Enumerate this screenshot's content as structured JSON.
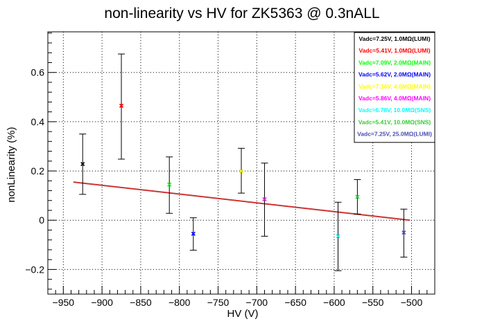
{
  "chart_data": {
    "type": "scatter",
    "title": "non-linearity vs HV for ZK5363 @ 0.3nALL",
    "xlabel": "HV (V)",
    "ylabel": "nonLinearity (%)",
    "xlim": [
      -970,
      -470
    ],
    "ylim": [
      -0.3,
      0.765
    ],
    "x_ticks": [
      -950,
      -900,
      -850,
      -800,
      -750,
      -700,
      -650,
      -600,
      -550,
      -500
    ],
    "x_tick_labels": [
      "−950",
      "−900",
      "−850",
      "−800",
      "−750",
      "−700",
      "−650",
      "−600",
      "−550",
      "−500"
    ],
    "y_ticks": [
      -0.2,
      0,
      0.2,
      0.4,
      0.6
    ],
    "y_tick_labels": [
      "−0.2",
      "0",
      "0.2",
      "0.4",
      "0.6"
    ],
    "grid": true,
    "legend_position": "top-right",
    "series": [
      {
        "name": "Vadc=7.25V, 1.0MΩ(LUMI)",
        "color": "#000000",
        "x": -925,
        "y": 0.228,
        "y_low": 0.105,
        "y_high": 0.35
      },
      {
        "name": "Vadc=5.41V, 1.0MΩ(LUMI)",
        "color": "#ff0000",
        "x": -875,
        "y": 0.465,
        "y_low": 0.248,
        "y_high": 0.675
      },
      {
        "name": "Vadc=7.09V, 2.0MΩ(MAIN)",
        "color": "#00ff00",
        "x": -813,
        "y": 0.145,
        "y_low": 0.028,
        "y_high": 0.257
      },
      {
        "name": "Vadc=5.62V, 2.0MΩ(MAIN)",
        "color": "#0000ff",
        "x": -782,
        "y": -0.055,
        "y_low": -0.122,
        "y_high": 0.01
      },
      {
        "name": "Vadc=7.36V, 4.0MΩ(MAIN)",
        "color": "#ffff00",
        "x": -720,
        "y": 0.2,
        "y_low": 0.11,
        "y_high": 0.292
      },
      {
        "name": "Vadc=5.86V, 4.0MΩ(MAIN)",
        "color": "#ff00ff",
        "x": -690,
        "y": 0.085,
        "y_low": -0.065,
        "y_high": 0.232
      },
      {
        "name": "Vadc=6.78V, 10.0MΩ(SNS)",
        "color": "#00ffff",
        "x": -595,
        "y": -0.065,
        "y_low": -0.205,
        "y_high": 0.073
      },
      {
        "name": "Vadc=5.41V, 10.0MΩ(SNS)",
        "color": "#33cc33",
        "x": -570,
        "y": 0.095,
        "y_low": 0.025,
        "y_high": 0.165
      },
      {
        "name": "Vadc=7.25V, 25.0MΩ(LUMI)",
        "color": "#4c4cb2",
        "x": -510,
        "y": -0.05,
        "y_low": -0.15,
        "y_high": 0.045
      }
    ],
    "fit_line": {
      "color": "#cc3333",
      "x": [
        -937,
        -502
      ],
      "y": [
        0.155,
        0.0
      ]
    }
  }
}
